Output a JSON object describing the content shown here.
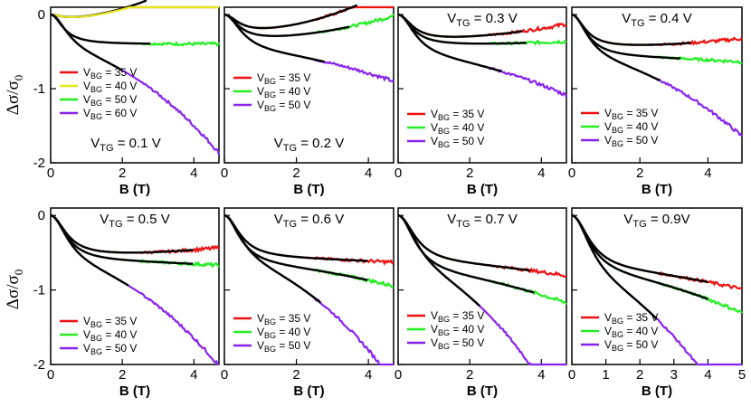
{
  "figure": {
    "y_label": {
      "main": "Δσ/σ",
      "sub": "0"
    },
    "x_label": "B (T)"
  },
  "colors": {
    "35": "#ee1111",
    "40yellow": "#eeee22",
    "40": "#22ee22",
    "50": "#22ee22",
    "50violet": "#8822ee",
    "60": "#8822ee",
    "fit": "#000000"
  },
  "chart_data": [
    {
      "id": "p1",
      "type": "line",
      "title": "V_TG = 0.1 V",
      "vtg": "0.1 V",
      "title_pos": "bottom",
      "xlim": [
        0,
        4.7
      ],
      "ylim": [
        -2,
        0.1
      ],
      "xticks": [
        0,
        2,
        4
      ],
      "yticks": [
        0,
        -1,
        -2
      ],
      "series": [
        {
          "name": "V_BG = 35 V",
          "vbg": "35 V",
          "color": "#ee1111",
          "xmax": 4.7,
          "ysat": 0.06,
          "b0": 0.35,
          "curv": -0.07,
          "fit_xmax": 2.7
        },
        {
          "name": "V_BG = 40 V",
          "vbg": "40 V",
          "color": "#e6e61e",
          "xmax": 4.7,
          "ysat": 0.06,
          "b0": 0.35,
          "curv": -0.065,
          "fit_xmax": 0
        },
        {
          "name": "V_BG = 50 V",
          "vbg": "50 V",
          "color": "#22ee22",
          "xmax": 4.7,
          "ysat": 0.4,
          "b0": 0.4,
          "curv": 0.0,
          "fit_xmax": 2.8
        },
        {
          "name": "V_BG = 60 V",
          "vbg": "60 V",
          "color": "#8822ee",
          "xmax": 4.7,
          "ysat": 0.55,
          "b0": 0.55,
          "curv": 0.12,
          "fit_xmax": 2.0
        }
      ]
    },
    {
      "id": "p2",
      "type": "line",
      "title": "V_TG = 0.2 V",
      "vtg": "0.2 V",
      "title_pos": "bottom",
      "xlim": [
        0,
        4.7
      ],
      "ylim": [
        -2,
        0.1
      ],
      "xticks": [
        0,
        2,
        4
      ],
      "yticks": [
        0,
        -1,
        -2
      ],
      "series": [
        {
          "name": "V_BG = 35 V",
          "vbg": "35 V",
          "color": "#ee1111",
          "xmax": 4.7,
          "ysat": 0.25,
          "b0": 0.45,
          "curv": -0.055,
          "fit_xmax": 3.7
        },
        {
          "name": "V_BG = 40 V",
          "vbg": "40 V",
          "color": "#22ee22",
          "xmax": 4.7,
          "ysat": 0.35,
          "b0": 0.45,
          "curv": -0.03,
          "fit_xmax": 3.5
        },
        {
          "name": "V_BG = 50 V",
          "vbg": "50 V",
          "color": "#8822ee",
          "xmax": 4.7,
          "ysat": 0.52,
          "b0": 0.55,
          "curv": 0.035,
          "fit_xmax": 2.8
        }
      ]
    },
    {
      "id": "p3",
      "type": "line",
      "title": "V_TG = 0.3 V",
      "vtg": "0.3 V",
      "title_pos": "top",
      "xlim": [
        0,
        4.7
      ],
      "ylim": [
        -2,
        0.1
      ],
      "xticks": [
        0,
        2,
        4
      ],
      "yticks": [
        0,
        -1,
        -2
      ],
      "series": [
        {
          "name": "V_BG = 35 V",
          "vbg": "35 V",
          "color": "#ee1111",
          "xmax": 4.7,
          "ysat": 0.35,
          "b0": 0.45,
          "curv": -0.02,
          "fit_xmax": 3.5
        },
        {
          "name": "V_BG = 40 V",
          "vbg": "40 V",
          "color": "#22ee22",
          "xmax": 4.7,
          "ysat": 0.42,
          "b0": 0.45,
          "curv": -0.005,
          "fit_xmax": 3.6
        },
        {
          "name": "V_BG = 50 V",
          "vbg": "50 V",
          "color": "#8822ee",
          "xmax": 4.7,
          "ysat": 0.6,
          "b0": 0.55,
          "curv": 0.045,
          "fit_xmax": 2.9
        }
      ]
    },
    {
      "id": "p4",
      "type": "line",
      "title": "V_TG = 0.4 V",
      "vtg": "0.4 V",
      "title_pos": "top",
      "xlim": [
        0,
        5.0
      ],
      "ylim": [
        -2,
        0.1
      ],
      "xticks": [
        0,
        2,
        4
      ],
      "yticks": [
        0,
        -1,
        -2
      ],
      "series": [
        {
          "name": "V_BG = 35 V",
          "vbg": "35 V",
          "color": "#ee1111",
          "xmax": 5.0,
          "ysat": 0.45,
          "b0": 0.45,
          "curv": -0.01,
          "fit_xmax": 3.5
        },
        {
          "name": "V_BG = 40 V",
          "vbg": "40 V",
          "color": "#22ee22",
          "xmax": 5.0,
          "ysat": 0.58,
          "b0": 0.5,
          "curv": 0.005,
          "fit_xmax": 3.2
        },
        {
          "name": "V_BG = 50 V",
          "vbg": "50 V",
          "color": "#8822ee",
          "xmax": 5.0,
          "ysat": 0.65,
          "b0": 0.55,
          "curv": 0.08,
          "fit_xmax": 2.6
        }
      ]
    },
    {
      "id": "p5",
      "type": "line",
      "title": "V_TG = 0.5 V",
      "vtg": "0.5 V",
      "title_pos": "top",
      "xlim": [
        0,
        4.7
      ],
      "ylim": [
        -2,
        0.1
      ],
      "xticks": [
        0,
        2,
        4
      ],
      "yticks": [
        0,
        -1,
        -2
      ],
      "series": [
        {
          "name": "V_BG = 35 V",
          "vbg": "35 V",
          "color": "#ee1111",
          "xmax": 4.7,
          "ysat": 0.55,
          "b0": 0.5,
          "curv": -0.01,
          "fit_xmax": 4.0
        },
        {
          "name": "V_BG = 40 V",
          "vbg": "40 V",
          "color": "#22ee22",
          "xmax": 4.7,
          "ysat": 0.62,
          "b0": 0.5,
          "curv": 0.005,
          "fit_xmax": 4.0
        },
        {
          "name": "V_BG = 50 V",
          "vbg": "50 V",
          "color": "#8822ee",
          "xmax": 4.7,
          "ysat": 0.7,
          "b0": 0.55,
          "curv": 0.12,
          "fit_xmax": 2.2
        }
      ]
    },
    {
      "id": "p6",
      "type": "line",
      "title": "V_TG = 0.6 V",
      "vtg": "0.6 V",
      "title_pos": "top",
      "xlim": [
        0,
        4.7
      ],
      "ylim": [
        -2,
        0.1
      ],
      "xticks": [
        0,
        2,
        4
      ],
      "yticks": [
        0,
        -1,
        -2
      ],
      "series": [
        {
          "name": "V_BG = 35 V",
          "vbg": "35 V",
          "color": "#ee1111",
          "xmax": 4.7,
          "ysat": 0.58,
          "b0": 0.5,
          "curv": 0.005,
          "fit_xmax": 4.0
        },
        {
          "name": "V_BG = 40 V",
          "vbg": "40 V",
          "color": "#22ee22",
          "xmax": 4.7,
          "ysat": 0.68,
          "b0": 0.5,
          "curv": 0.025,
          "fit_xmax": 4.0
        },
        {
          "name": "V_BG = 50 V",
          "vbg": "50 V",
          "color": "#8822ee",
          "xmax": 4.7,
          "ysat": 0.7,
          "b0": 0.55,
          "curv": 0.14,
          "fit_xmax": 2.7
        }
      ]
    },
    {
      "id": "p7",
      "type": "line",
      "title": "V_TG = 0.7 V",
      "vtg": "0.7 V",
      "title_pos": "top",
      "xlim": [
        0,
        4.7
      ],
      "ylim": [
        -2,
        0.1
      ],
      "xticks": [
        0,
        2,
        4
      ],
      "yticks": [
        0,
        -1,
        -2
      ],
      "series": [
        {
          "name": "V_BG = 35 V",
          "vbg": "35 V",
          "color": "#ee1111",
          "xmax": 4.7,
          "ysat": 0.65,
          "b0": 0.55,
          "curv": 0.015,
          "fit_xmax": 3.7
        },
        {
          "name": "V_BG = 40 V",
          "vbg": "40 V",
          "color": "#22ee22",
          "xmax": 4.7,
          "ysat": 0.8,
          "b0": 0.55,
          "curv": 0.035,
          "fit_xmax": 3.8
        },
        {
          "name": "V_BG = 50 V",
          "vbg": "50 V",
          "color": "#8822ee",
          "xmax": 4.7,
          "ysat": 0.8,
          "b0": 0.6,
          "curv": 0.18,
          "fit_xmax": 2.3
        }
      ]
    },
    {
      "id": "p8",
      "type": "line",
      "title": "V_TG = 0.9V",
      "vtg": "0.9V",
      "title_pos": "top",
      "xlim": [
        0,
        5.0
      ],
      "ylim": [
        -2,
        0.1
      ],
      "xticks": [
        0,
        1,
        2,
        3,
        4,
        5
      ],
      "yticks": [
        0,
        -1,
        -2
      ],
      "series": [
        {
          "name": "V_BG = 35 V",
          "vbg": "35 V",
          "color": "#ee1111",
          "xmax": 5.0,
          "ysat": 0.75,
          "b0": 0.6,
          "curv": 0.02,
          "fit_xmax": 4.0
        },
        {
          "name": "V_BG = 40 V",
          "vbg": "40 V",
          "color": "#22ee22",
          "xmax": 5.0,
          "ysat": 0.82,
          "b0": 0.6,
          "curv": 0.04,
          "fit_xmax": 4.0
        },
        {
          "name": "V_BG = 50 V",
          "vbg": "50 V",
          "color": "#8822ee",
          "xmax": 5.0,
          "ysat": 0.95,
          "b0": 0.65,
          "curv": 0.16,
          "fit_xmax": 2.5
        }
      ]
    }
  ]
}
